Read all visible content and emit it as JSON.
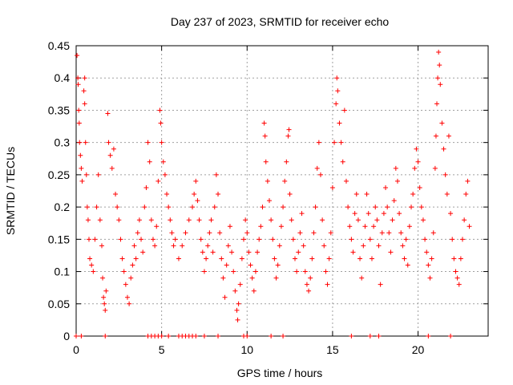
{
  "chart_data": {
    "type": "scatter",
    "title": "Day 237 of 2023, SRMTID for receiver echo",
    "xlabel": "GPS time / hours",
    "ylabel": "SRMTID / TECUs",
    "xlim": [
      0,
      24.1
    ],
    "ylim": [
      0,
      0.45
    ],
    "xticks": [
      0,
      5,
      10,
      15,
      20
    ],
    "xtick_labels": [
      "0",
      "5",
      "10",
      "15",
      "20"
    ],
    "yticks": [
      0,
      0.05,
      0.1,
      0.15,
      0.2,
      0.25,
      0.3,
      0.35,
      0.4,
      0.45
    ],
    "ytick_labels": [
      "0",
      "0.05",
      "0.1",
      "0.15",
      "0.2",
      "0.25",
      "0.3",
      "0.35",
      "0.4",
      "0.45"
    ],
    "grid": true,
    "marker": "+",
    "series": [
      {
        "name": "SRMTID",
        "color": "#ff0000",
        "points": [
          [
            0.05,
            0.435
          ],
          [
            0.1,
            0.4
          ],
          [
            0.12,
            0.39
          ],
          [
            0.15,
            0.35
          ],
          [
            0.18,
            0.33
          ],
          [
            0.2,
            0.3
          ],
          [
            0.25,
            0.28
          ],
          [
            0.3,
            0.26
          ],
          [
            0.35,
            0.24
          ],
          [
            0.45,
            0.38
          ],
          [
            0.5,
            0.4
          ],
          [
            0.5,
            0.36
          ],
          [
            0.55,
            0.3
          ],
          [
            0.6,
            0.25
          ],
          [
            0.65,
            0.2
          ],
          [
            0.7,
            0.18
          ],
          [
            0.75,
            0.15
          ],
          [
            0.8,
            0.12
          ],
          [
            0.9,
            0.11
          ],
          [
            1.0,
            0.1
          ],
          [
            1.1,
            0.15
          ],
          [
            1.2,
            0.2
          ],
          [
            1.3,
            0.25
          ],
          [
            1.4,
            0.18
          ],
          [
            1.5,
            0.14
          ],
          [
            1.55,
            0.09
          ],
          [
            1.6,
            0.06
          ],
          [
            1.65,
            0.05
          ],
          [
            1.7,
            0.04
          ],
          [
            1.75,
            0.07
          ],
          [
            1.85,
            0.345
          ],
          [
            1.9,
            0.3
          ],
          [
            2.0,
            0.28
          ],
          [
            2.1,
            0.26
          ],
          [
            2.2,
            0.29
          ],
          [
            2.3,
            0.22
          ],
          [
            2.4,
            0.2
          ],
          [
            2.5,
            0.18
          ],
          [
            2.6,
            0.15
          ],
          [
            2.7,
            0.12
          ],
          [
            2.8,
            0.1
          ],
          [
            2.9,
            0.08
          ],
          [
            3.0,
            0.06
          ],
          [
            3.1,
            0.05
          ],
          [
            3.2,
            0.09
          ],
          [
            3.3,
            0.11
          ],
          [
            3.4,
            0.14
          ],
          [
            3.5,
            0.12
          ],
          [
            3.6,
            0.16
          ],
          [
            3.7,
            0.18
          ],
          [
            3.8,
            0.15
          ],
          [
            3.9,
            0.13
          ],
          [
            4.0,
            0.2
          ],
          [
            4.1,
            0.23
          ],
          [
            4.2,
            0.3
          ],
          [
            4.3,
            0.27
          ],
          [
            4.4,
            0.18
          ],
          [
            4.5,
            0.15
          ],
          [
            4.6,
            0.14
          ],
          [
            4.7,
            0.17
          ],
          [
            4.8,
            0.24
          ],
          [
            4.9,
            0.35
          ],
          [
            4.95,
            0.33
          ],
          [
            5.0,
            0.3
          ],
          [
            5.1,
            0.27
          ],
          [
            5.2,
            0.25
          ],
          [
            5.3,
            0.22
          ],
          [
            5.4,
            0.2
          ],
          [
            5.5,
            0.18
          ],
          [
            5.6,
            0.16
          ],
          [
            5.7,
            0.14
          ],
          [
            5.8,
            0.15
          ],
          [
            6.0,
            0.12
          ],
          [
            6.2,
            0.14
          ],
          [
            6.4,
            0.16
          ],
          [
            6.6,
            0.18
          ],
          [
            6.8,
            0.2
          ],
          [
            6.9,
            0.22
          ],
          [
            7.0,
            0.24
          ],
          [
            7.1,
            0.21
          ],
          [
            7.2,
            0.18
          ],
          [
            7.3,
            0.15
          ],
          [
            7.4,
            0.13
          ],
          [
            7.5,
            0.1
          ],
          [
            7.6,
            0.12
          ],
          [
            7.7,
            0.14
          ],
          [
            7.8,
            0.16
          ],
          [
            7.9,
            0.18
          ],
          [
            8.0,
            0.13
          ],
          [
            8.1,
            0.2
          ],
          [
            8.2,
            0.25
          ],
          [
            8.3,
            0.22
          ],
          [
            8.4,
            0.16
          ],
          [
            8.5,
            0.12
          ],
          [
            8.6,
            0.09
          ],
          [
            8.7,
            0.06
          ],
          [
            8.8,
            0.11
          ],
          [
            8.9,
            0.14
          ],
          [
            9.0,
            0.17
          ],
          [
            9.1,
            0.13
          ],
          [
            9.2,
            0.1
          ],
          [
            9.3,
            0.07
          ],
          [
            9.4,
            0.04
          ],
          [
            9.45,
            0.025
          ],
          [
            9.5,
            0.05
          ],
          [
            9.6,
            0.08
          ],
          [
            9.7,
            0.12
          ],
          [
            9.8,
            0.15
          ],
          [
            9.9,
            0.18
          ],
          [
            10.0,
            0.16
          ],
          [
            10.1,
            0.13
          ],
          [
            10.2,
            0.11
          ],
          [
            10.3,
            0.09
          ],
          [
            10.4,
            0.07
          ],
          [
            10.5,
            0.1
          ],
          [
            10.6,
            0.13
          ],
          [
            10.7,
            0.15
          ],
          [
            10.8,
            0.17
          ],
          [
            10.9,
            0.2
          ],
          [
            11.0,
            0.33
          ],
          [
            11.05,
            0.31
          ],
          [
            11.1,
            0.27
          ],
          [
            11.2,
            0.24
          ],
          [
            11.3,
            0.21
          ],
          [
            11.4,
            0.18
          ],
          [
            11.5,
            0.15
          ],
          [
            11.6,
            0.12
          ],
          [
            11.7,
            0.09
          ],
          [
            11.8,
            0.11
          ],
          [
            11.9,
            0.14
          ],
          [
            12.0,
            0.17
          ],
          [
            12.1,
            0.2
          ],
          [
            12.2,
            0.24
          ],
          [
            12.3,
            0.27
          ],
          [
            12.4,
            0.31
          ],
          [
            12.45,
            0.32
          ],
          [
            12.5,
            0.22
          ],
          [
            12.6,
            0.18
          ],
          [
            12.7,
            0.15
          ],
          [
            12.8,
            0.12
          ],
          [
            12.9,
            0.1
          ],
          [
            13.0,
            0.13
          ],
          [
            13.1,
            0.16
          ],
          [
            13.2,
            0.19
          ],
          [
            13.3,
            0.14
          ],
          [
            13.4,
            0.1
          ],
          [
            13.5,
            0.08
          ],
          [
            13.6,
            0.07
          ],
          [
            13.7,
            0.09
          ],
          [
            13.8,
            0.12
          ],
          [
            13.9,
            0.16
          ],
          [
            14.0,
            0.2
          ],
          [
            14.1,
            0.26
          ],
          [
            14.2,
            0.3
          ],
          [
            14.3,
            0.25
          ],
          [
            14.4,
            0.18
          ],
          [
            14.5,
            0.14
          ],
          [
            14.6,
            0.1
          ],
          [
            14.7,
            0.08
          ],
          [
            14.8,
            0.12
          ],
          [
            14.9,
            0.16
          ],
          [
            15.0,
            0.23
          ],
          [
            15.1,
            0.3
          ],
          [
            15.2,
            0.36
          ],
          [
            15.25,
            0.4
          ],
          [
            15.3,
            0.38
          ],
          [
            15.4,
            0.33
          ],
          [
            15.5,
            0.3
          ],
          [
            15.6,
            0.27
          ],
          [
            15.7,
            0.35
          ],
          [
            15.8,
            0.24
          ],
          [
            15.9,
            0.2
          ],
          [
            16.0,
            0.17
          ],
          [
            16.1,
            0.15
          ],
          [
            16.2,
            0.13
          ],
          [
            16.3,
            0.19
          ],
          [
            16.4,
            0.22
          ],
          [
            16.5,
            0.18
          ],
          [
            16.6,
            0.12
          ],
          [
            16.7,
            0.09
          ],
          [
            16.8,
            0.14
          ],
          [
            16.9,
            0.17
          ],
          [
            17.0,
            0.22
          ],
          [
            17.1,
            0.19
          ],
          [
            17.2,
            0.15
          ],
          [
            17.3,
            0.12
          ],
          [
            17.4,
            0.17
          ],
          [
            17.5,
            0.2
          ],
          [
            17.6,
            0.18
          ],
          [
            17.7,
            0.14
          ],
          [
            17.8,
            0.08
          ],
          [
            17.9,
            0.16
          ],
          [
            18.0,
            0.19
          ],
          [
            18.1,
            0.23
          ],
          [
            18.2,
            0.2
          ],
          [
            18.3,
            0.16
          ],
          [
            18.4,
            0.13
          ],
          [
            18.5,
            0.18
          ],
          [
            18.6,
            0.21
          ],
          [
            18.7,
            0.26
          ],
          [
            18.8,
            0.24
          ],
          [
            18.9,
            0.19
          ],
          [
            19.0,
            0.16
          ],
          [
            19.1,
            0.14
          ],
          [
            19.2,
            0.12
          ],
          [
            19.3,
            0.15
          ],
          [
            19.4,
            0.11
          ],
          [
            19.5,
            0.17
          ],
          [
            19.6,
            0.2
          ],
          [
            19.7,
            0.22
          ],
          [
            19.8,
            0.26
          ],
          [
            19.9,
            0.29
          ],
          [
            20.0,
            0.27
          ],
          [
            20.1,
            0.23
          ],
          [
            20.2,
            0.2
          ],
          [
            20.3,
            0.18
          ],
          [
            20.4,
            0.15
          ],
          [
            20.5,
            0.13
          ],
          [
            20.6,
            0.11
          ],
          [
            20.7,
            0.09
          ],
          [
            20.8,
            0.12
          ],
          [
            20.9,
            0.16
          ],
          [
            21.0,
            0.26
          ],
          [
            21.05,
            0.31
          ],
          [
            21.1,
            0.36
          ],
          [
            21.15,
            0.4
          ],
          [
            21.2,
            0.44
          ],
          [
            21.25,
            0.42
          ],
          [
            21.3,
            0.39
          ],
          [
            21.4,
            0.33
          ],
          [
            21.5,
            0.29
          ],
          [
            21.6,
            0.25
          ],
          [
            21.7,
            0.22
          ],
          [
            21.8,
            0.31
          ],
          [
            21.9,
            0.19
          ],
          [
            22.0,
            0.15
          ],
          [
            22.1,
            0.12
          ],
          [
            22.2,
            0.1
          ],
          [
            22.3,
            0.09
          ],
          [
            22.4,
            0.08
          ],
          [
            22.5,
            0.12
          ],
          [
            22.6,
            0.15
          ],
          [
            22.7,
            0.18
          ],
          [
            22.8,
            0.22
          ],
          [
            22.9,
            0.24
          ],
          [
            23.0,
            0.17
          ],
          [
            0,
            0
          ],
          [
            0.3,
            0
          ],
          [
            1.7,
            0
          ],
          [
            4.2,
            0
          ],
          [
            4.4,
            0
          ],
          [
            4.6,
            0
          ],
          [
            4.8,
            0
          ],
          [
            5.0,
            0
          ],
          [
            5.4,
            0
          ],
          [
            6.0,
            0
          ],
          [
            6.2,
            0
          ],
          [
            6.4,
            0
          ],
          [
            6.6,
            0
          ],
          [
            6.8,
            0
          ],
          [
            7.0,
            0
          ],
          [
            7.5,
            0
          ],
          [
            8.3,
            0
          ],
          [
            9.8,
            0
          ],
          [
            10.0,
            0
          ],
          [
            11.4,
            0
          ],
          [
            12.1,
            0
          ],
          [
            16.1,
            0
          ],
          [
            17.2,
            0
          ],
          [
            17.7,
            0
          ],
          [
            20.6,
            0
          ],
          [
            21.9,
            0
          ]
        ]
      }
    ]
  }
}
